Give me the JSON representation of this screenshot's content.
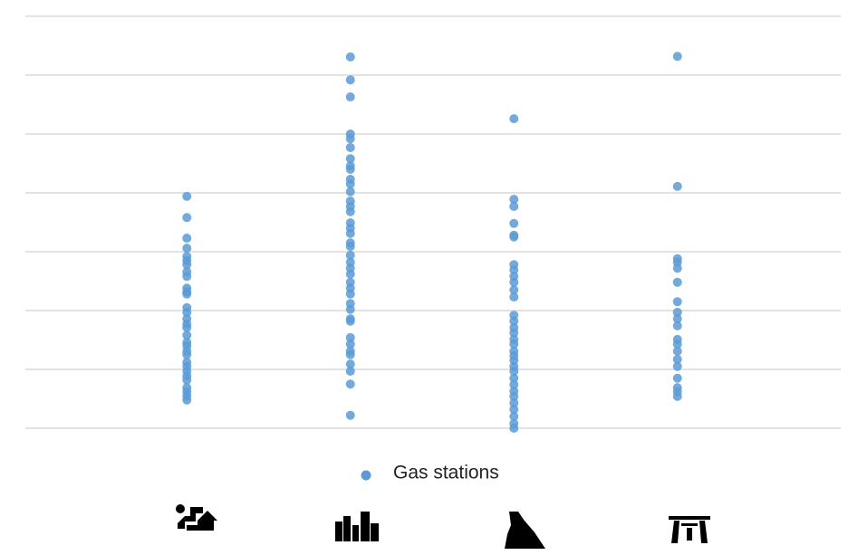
{
  "chart_data": {
    "type": "strip",
    "categories": [
      null,
      null,
      null,
      null
    ],
    "series": [
      {
        "name": "Gas stations",
        "color": "#5b9bd5",
        "values": [
          [
            3.94,
            3.58,
            3.23,
            3.06,
            2.92,
            2.85,
            2.78,
            2.66,
            2.58,
            2.38,
            2.32,
            2.28,
            2.05,
            1.97,
            1.86,
            1.77,
            1.71,
            1.58,
            1.46,
            1.4,
            1.31,
            1.25,
            1.12,
            1.05,
            0.97,
            0.89,
            0.82,
            0.69,
            0.62,
            0.55,
            0.48
          ],
          [
            6.31,
            5.92,
            5.63,
            5.0,
            4.92,
            4.77,
            4.58,
            4.46,
            4.4,
            4.23,
            4.15,
            4.02,
            3.86,
            3.77,
            3.68,
            3.49,
            3.4,
            3.31,
            3.15,
            3.09,
            2.94,
            2.82,
            2.72,
            2.62,
            2.48,
            2.38,
            2.28,
            2.12,
            2.02,
            1.86,
            1.82,
            1.54,
            1.43,
            1.31,
            1.25,
            1.09,
            0.97,
            0.75,
            0.22
          ],
          [
            5.26,
            3.89,
            3.77,
            3.48,
            3.28,
            3.25,
            2.78,
            2.69,
            2.58,
            2.48,
            2.35,
            2.23,
            1.92,
            1.82,
            1.71,
            1.62,
            1.51,
            1.43,
            1.31,
            1.23,
            1.15,
            1.05,
            0.97,
            0.85,
            0.74,
            0.63,
            0.54,
            0.43,
            0.32,
            0.2,
            0.08,
            0.0
          ],
          [
            6.32,
            4.11,
            2.88,
            2.82,
            2.72,
            2.48,
            2.15,
            1.97,
            1.86,
            1.74,
            1.51,
            1.43,
            1.31,
            1.17,
            1.05,
            0.85,
            0.69,
            0.62,
            0.54
          ]
        ]
      }
    ],
    "ylim": [
      0,
      7
    ],
    "yticks": [
      0,
      1,
      2,
      3,
      4,
      5,
      6,
      7
    ],
    "grid": true
  }
}
